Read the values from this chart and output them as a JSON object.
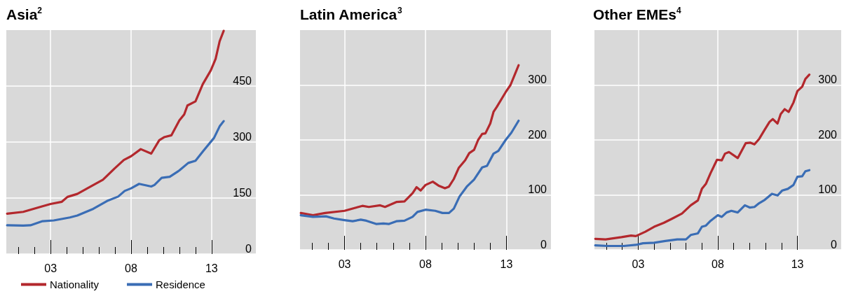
{
  "chart_data": [
    {
      "type": "line",
      "title": "Asia$^{2}$",
      "legend": "bottom left",
      "grid": true,
      "xlim": [
        2000.25,
        2015.75
      ],
      "ylim": [
        0,
        600
      ],
      "yticks": [
        0,
        150,
        300,
        450
      ],
      "xticks": [
        {
          "value": 2001,
          "label": null
        },
        {
          "value": 2002,
          "label": null
        },
        {
          "value": 2003,
          "label": "03"
        },
        {
          "value": 2004,
          "label": null
        },
        {
          "value": 2005,
          "label": null
        },
        {
          "value": 2006,
          "label": null
        },
        {
          "value": 2007,
          "label": null
        },
        {
          "value": 2008,
          "label": "08"
        },
        {
          "value": 2009,
          "label": null
        },
        {
          "value": 2010,
          "label": null
        },
        {
          "value": 2011,
          "label": null
        },
        {
          "value": 2012,
          "label": null
        },
        {
          "value": 2013,
          "label": "13"
        }
      ],
      "series": [
        {
          "name": "Nationality",
          "color": "#b3282d",
          "x": [
            2000.3,
            2001.3,
            2002.5,
            2003,
            2003.7,
            2004.05,
            2004.66,
            2005.5,
            2006.25,
            2006.97,
            2007.55,
            2008,
            2008.6,
            2009.25,
            2009.75,
            2010.05,
            2010.5,
            2011,
            2011.3,
            2011.5,
            2012,
            2012.45,
            2012.95,
            2013.25,
            2013.5,
            2013.75
          ],
          "values": [
            108,
            113,
            128,
            134,
            140,
            153,
            161,
            181,
            199,
            229,
            252,
            262,
            281,
            269,
            305,
            313,
            318,
            358,
            374,
            398,
            409,
            455,
            492,
            523,
            570,
            598
          ]
        },
        {
          "name": "Residence",
          "color": "#3a6db5",
          "x": [
            2000.3,
            2001.3,
            2001.75,
            2002.5,
            2003.2,
            2004.2,
            2004.66,
            2005.1,
            2005.65,
            2006.5,
            2007.2,
            2007.6,
            2008,
            2008.5,
            2009.25,
            2009.45,
            2009.9,
            2010.4,
            2011,
            2011.55,
            2012,
            2012.5,
            2013.15,
            2013.5,
            2013.75
          ],
          "values": [
            77,
            76,
            77,
            88,
            90,
            98,
            103,
            111,
            121,
            142,
            154,
            169,
            176,
            188,
            181,
            185,
            204,
            207,
            224,
            244,
            250,
            277,
            311,
            342,
            356
          ]
        }
      ]
    },
    {
      "type": "line",
      "title": "Latin America$^{3}$",
      "grid": true,
      "xlim": [
        2000.25,
        2015.75
      ],
      "ylim": [
        0,
        400
      ],
      "yticks": [
        0,
        100,
        200,
        300
      ],
      "xticks": [
        {
          "value": 2001,
          "label": null
        },
        {
          "value": 2002,
          "label": null
        },
        {
          "value": 2003,
          "label": "03"
        },
        {
          "value": 2004,
          "label": null
        },
        {
          "value": 2005,
          "label": null
        },
        {
          "value": 2006,
          "label": null
        },
        {
          "value": 2007,
          "label": null
        },
        {
          "value": 2008,
          "label": "08"
        },
        {
          "value": 2009,
          "label": null
        },
        {
          "value": 2010,
          "label": null
        },
        {
          "value": 2011,
          "label": null
        },
        {
          "value": 2012,
          "label": null
        },
        {
          "value": 2013,
          "label": "13"
        }
      ],
      "series": [
        {
          "color": "#b3282d",
          "x": [
            2000.3,
            2001.05,
            2001.8,
            2003,
            2004.1,
            2004.5,
            2005.2,
            2005.5,
            2006.2,
            2006.7,
            2007.2,
            2007.45,
            2007.7,
            2008,
            2008.45,
            2008.8,
            2009.2,
            2009.45,
            2009.75,
            2010.05,
            2010.45,
            2010.7,
            2011,
            2011.25,
            2011.5,
            2011.7,
            2012,
            2012.2,
            2012.4,
            2012.95,
            2013.25,
            2013.5,
            2013.75
          ],
          "values": [
            67,
            63,
            67,
            71,
            80,
            78,
            81,
            78,
            87,
            88,
            103,
            114,
            108,
            118,
            124,
            117,
            112,
            115,
            129,
            149,
            163,
            176,
            182,
            200,
            211,
            212,
            230,
            251,
            260,
            287,
            300,
            318,
            336
          ]
        },
        {
          "color": "#3a6db5",
          "x": [
            2000.3,
            2001.05,
            2001.85,
            2002.35,
            2003,
            2003.5,
            2004,
            2004.35,
            2004.95,
            2005.4,
            2005.75,
            2006.2,
            2006.7,
            2007.2,
            2007.5,
            2008,
            2008.6,
            2009.05,
            2009.45,
            2009.75,
            2010.1,
            2010.55,
            2011,
            2011.5,
            2011.8,
            2012.2,
            2012.5,
            2012.95,
            2013.3,
            2013.75
          ],
          "values": [
            63,
            60,
            61,
            57,
            54,
            52,
            55,
            53,
            47,
            48,
            47,
            52,
            53,
            60,
            69,
            73,
            71,
            67,
            67,
            75,
            97,
            115,
            128,
            150,
            153,
            175,
            180,
            200,
            213,
            235
          ]
        }
      ]
    },
    {
      "type": "line",
      "title": "Other EMEs$^{4}$",
      "grid": true,
      "xlim": [
        2000.25,
        2015.75
      ],
      "ylim": [
        0,
        400
      ],
      "yticks": [
        0,
        100,
        200,
        300
      ],
      "xticks": [
        {
          "value": 2001,
          "label": null
        },
        {
          "value": 2002,
          "label": null
        },
        {
          "value": 2003,
          "label": "03"
        },
        {
          "value": 2004,
          "label": null
        },
        {
          "value": 2005,
          "label": null
        },
        {
          "value": 2006,
          "label": null
        },
        {
          "value": 2007,
          "label": null
        },
        {
          "value": 2008,
          "label": "08"
        },
        {
          "value": 2009,
          "label": null
        },
        {
          "value": 2010,
          "label": null
        },
        {
          "value": 2011,
          "label": null
        },
        {
          "value": 2012,
          "label": null
        },
        {
          "value": 2013,
          "label": "13"
        }
      ],
      "series": [
        {
          "color": "#b3282d",
          "x": [
            2000.3,
            2000.95,
            2001.95,
            2002.55,
            2002.85,
            2003.45,
            2004,
            2004.6,
            2005.15,
            2005.75,
            2006.3,
            2006.75,
            2007,
            2007.25,
            2007.55,
            2007.95,
            2008.25,
            2008.45,
            2008.7,
            2009.25,
            2009.75,
            2010.05,
            2010.3,
            2010.6,
            2010.95,
            2011.25,
            2011.45,
            2011.75,
            2011.95,
            2012.2,
            2012.45,
            2012.75,
            2013,
            2013.3,
            2013.5,
            2013.75
          ],
          "values": [
            20,
            19,
            23,
            26,
            25,
            33,
            42,
            49,
            57,
            66,
            81,
            90,
            111,
            120,
            140,
            164,
            163,
            175,
            178,
            167,
            194,
            195,
            192,
            202,
            219,
            233,
            238,
            230,
            247,
            256,
            251,
            268,
            289,
            297,
            311,
            319
          ]
        },
        {
          "color": "#3a6db5",
          "x": [
            2000.3,
            2001.1,
            2002.1,
            2002.85,
            2003.3,
            2004,
            2004.7,
            2005.45,
            2006,
            2006.3,
            2006.75,
            2007,
            2007.25,
            2007.55,
            2008,
            2008.25,
            2008.55,
            2008.85,
            2009.25,
            2009.7,
            2010,
            2010.3,
            2010.6,
            2010.95,
            2011.4,
            2011.75,
            2012.05,
            2012.4,
            2012.75,
            2013,
            2013.3,
            2013.5,
            2013.75
          ],
          "values": [
            8,
            7,
            7,
            9,
            12,
            13,
            16,
            19,
            19,
            27,
            30,
            42,
            44,
            53,
            63,
            60,
            68,
            71,
            68,
            81,
            77,
            78,
            85,
            91,
            102,
            99,
            108,
            111,
            118,
            133,
            134,
            143,
            145
          ]
        }
      ]
    }
  ]
}
